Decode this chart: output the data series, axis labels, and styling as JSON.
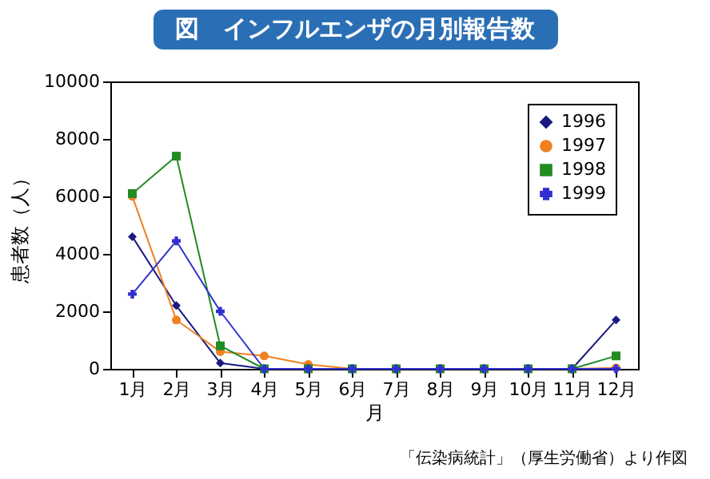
{
  "chart_data": {
    "type": "line",
    "title": "図　インフルエンザの月別報告数",
    "xlabel": "月",
    "ylabel": "患者数（人）",
    "categories": [
      "1月",
      "2月",
      "3月",
      "4月",
      "5月",
      "6月",
      "7月",
      "8月",
      "9月",
      "10月",
      "11月",
      "12月"
    ],
    "series": [
      {
        "name": "1996",
        "color": "#1a1a80",
        "marker": "diamond",
        "values": [
          4600,
          2200,
          200,
          0,
          0,
          0,
          0,
          0,
          0,
          0,
          0,
          1700
        ]
      },
      {
        "name": "1997",
        "color": "#f08020",
        "marker": "circle",
        "values": [
          6000,
          1700,
          600,
          450,
          150,
          0,
          0,
          0,
          0,
          0,
          0,
          30
        ]
      },
      {
        "name": "1998",
        "color": "#228b22",
        "marker": "square",
        "values": [
          6100,
          7400,
          800,
          0,
          0,
          0,
          0,
          0,
          0,
          0,
          0,
          450
        ]
      },
      {
        "name": "1999",
        "color": "#3030d0",
        "marker": "cross",
        "values": [
          2600,
          4450,
          2000,
          0,
          0,
          0,
          0,
          0,
          0,
          0,
          0,
          0
        ]
      }
    ],
    "ylim": [
      0,
      10000
    ],
    "yticks": [
      0,
      2000,
      4000,
      6000,
      8000,
      10000
    ],
    "grid": false,
    "legend": "top right",
    "annotations": [
      "「伝染病統計」（厚生労働省）より作図"
    ]
  }
}
